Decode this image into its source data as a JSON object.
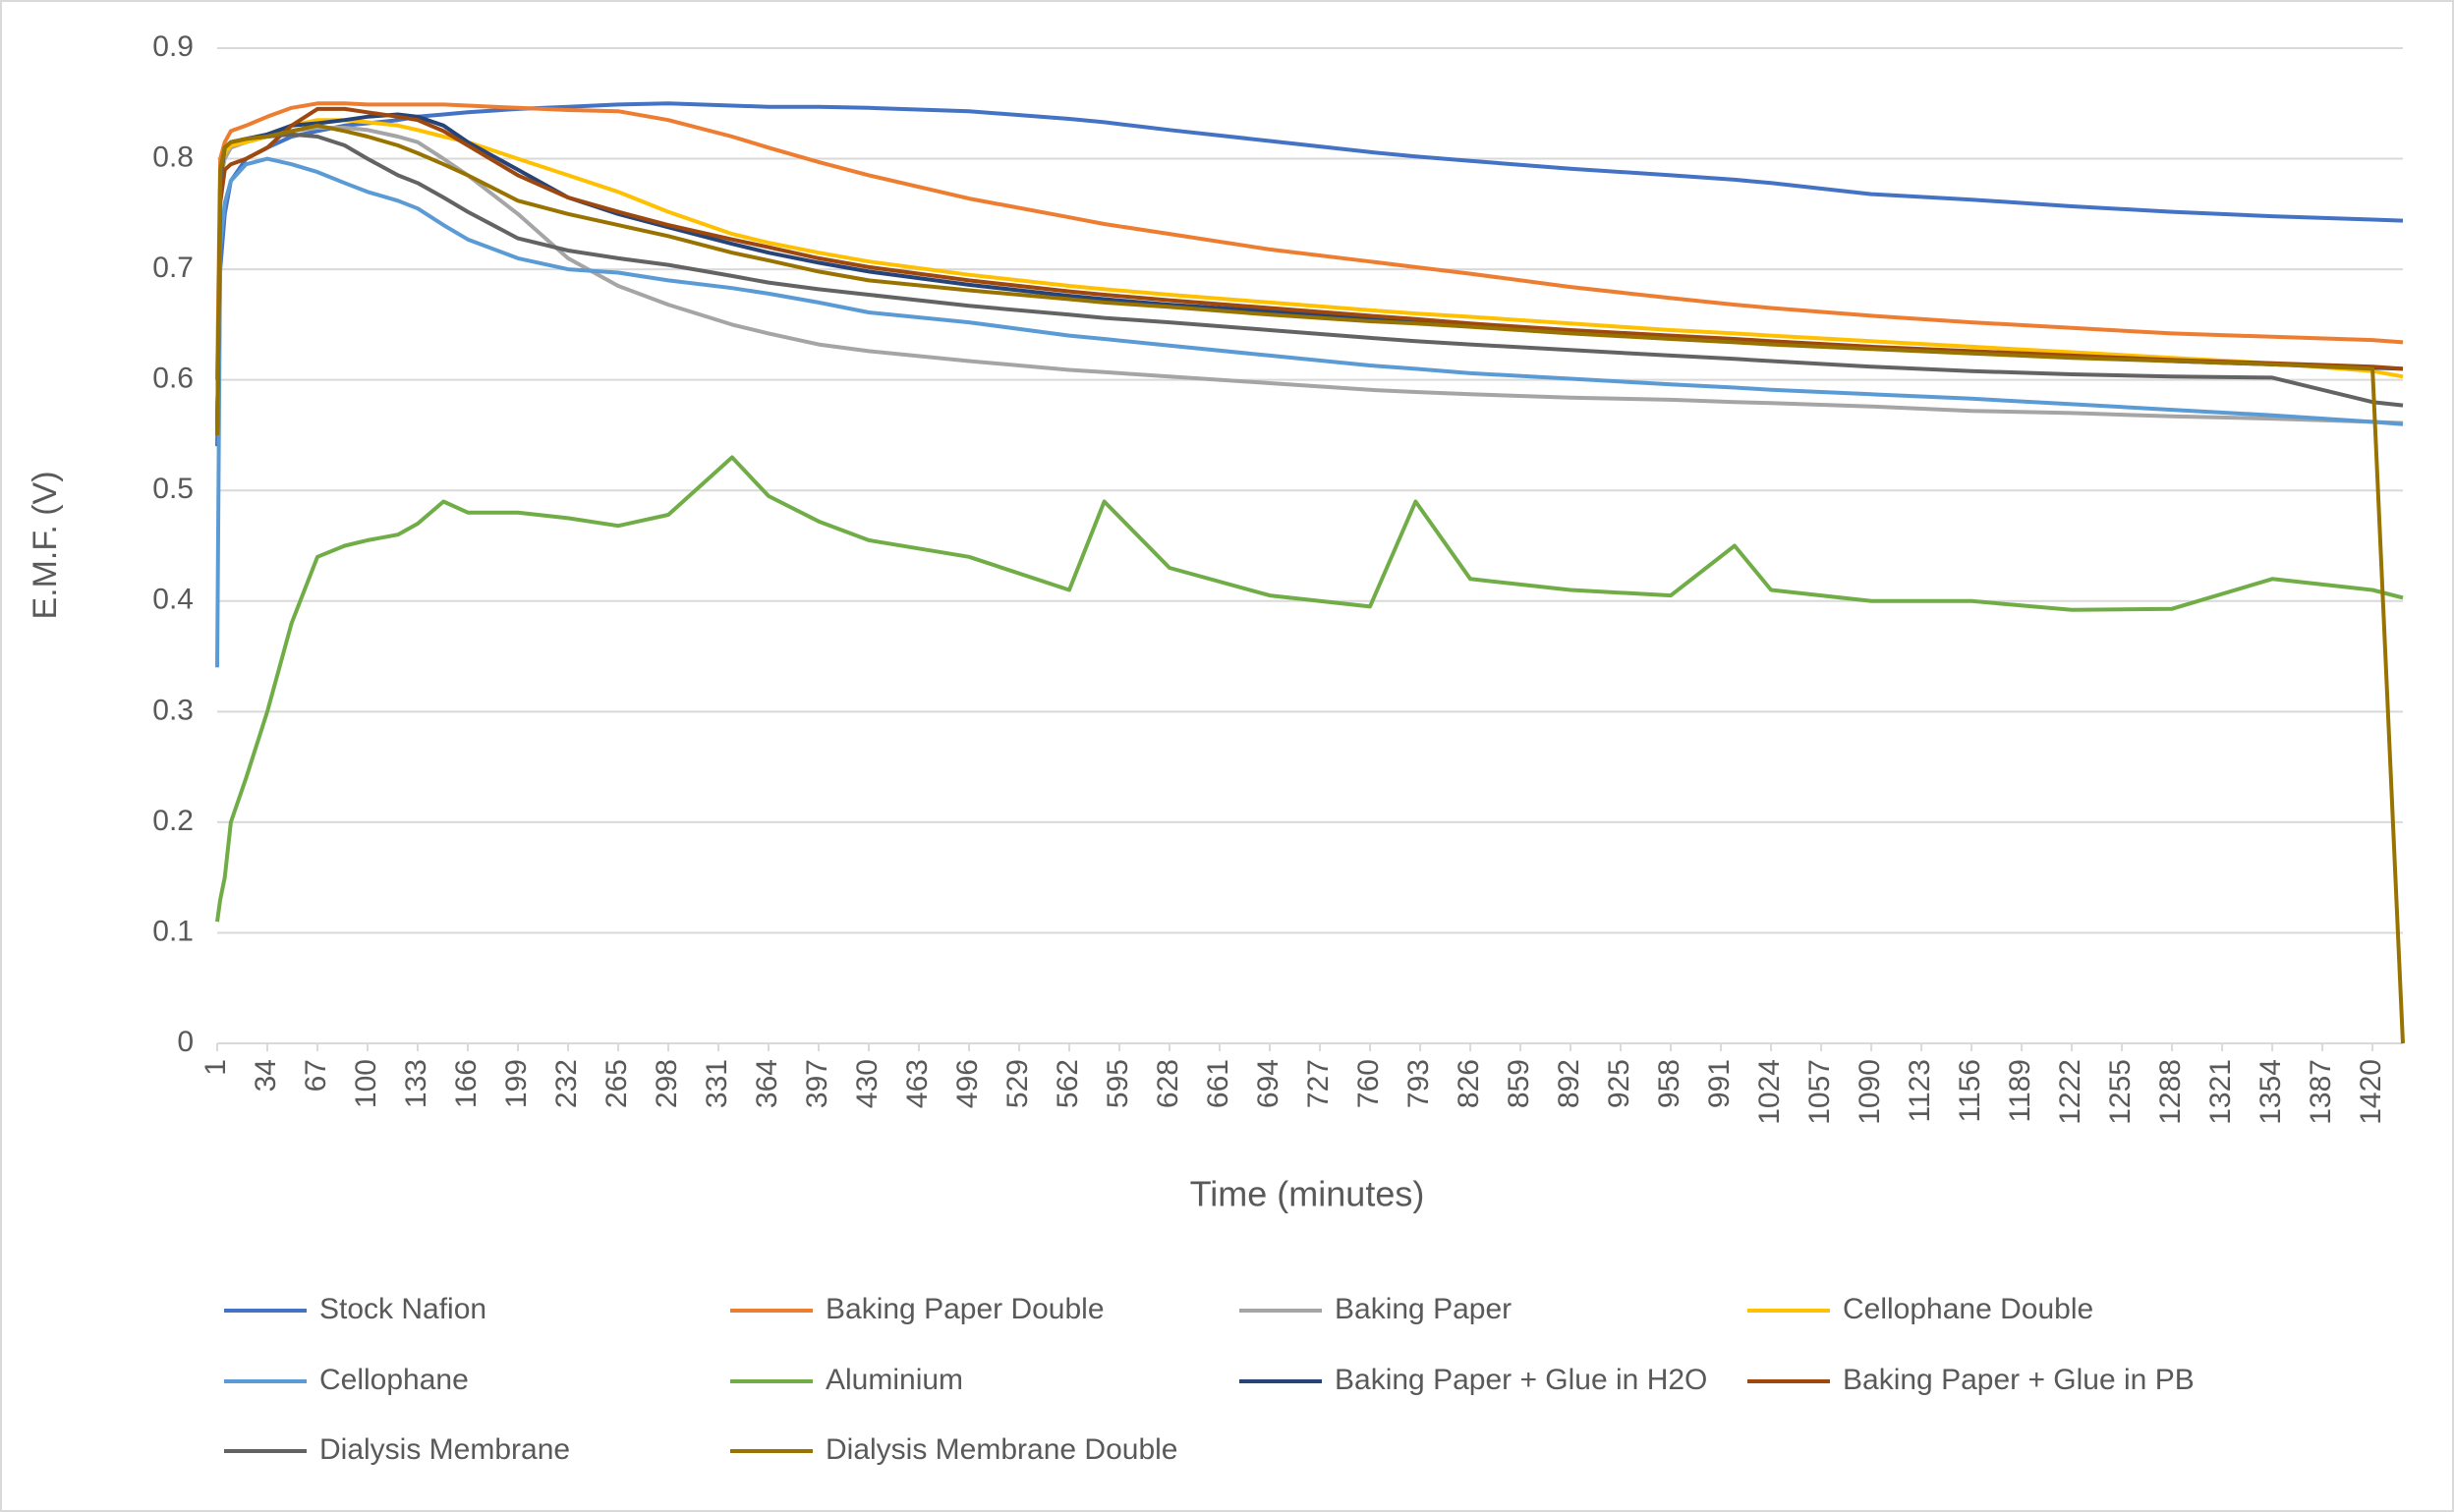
{
  "chart_data": {
    "type": "line",
    "x_label": "Time (minutes)",
    "y_label": "E.M.F. (V)",
    "x": [
      1,
      3,
      6,
      10,
      20,
      34,
      50,
      67,
      85,
      100,
      120,
      133,
      150,
      166,
      199,
      232,
      265,
      298,
      340,
      364,
      397,
      430,
      496,
      562,
      585,
      628,
      694,
      760,
      790,
      826,
      892,
      958,
      1000,
      1024,
      1090,
      1156,
      1222,
      1288,
      1354,
      1420,
      1440
    ],
    "xlim": [
      1,
      1440
    ],
    "xticks": [
      1,
      34,
      67,
      100,
      133,
      166,
      199,
      232,
      265,
      298,
      331,
      364,
      397,
      430,
      463,
      496,
      529,
      562,
      595,
      628,
      661,
      694,
      727,
      760,
      793,
      826,
      859,
      892,
      925,
      958,
      991,
      1024,
      1057,
      1090,
      1123,
      1156,
      1189,
      1222,
      1255,
      1288,
      1321,
      1354,
      1387,
      1420
    ],
    "ylim": [
      0,
      0.9
    ],
    "yticks": [
      0,
      0.1,
      0.2,
      0.3,
      0.4,
      0.5,
      0.6,
      0.7,
      0.8,
      0.9
    ],
    "grid": true,
    "legend": "bottom",
    "series": [
      {
        "name": "Stock Nafion",
        "color": "#4472c4",
        "values": [
          0.54,
          0.7,
          0.75,
          0.78,
          0.8,
          0.81,
          0.82,
          0.825,
          0.83,
          0.832,
          0.835,
          0.838,
          0.84,
          0.842,
          0.845,
          0.847,
          0.849,
          0.85,
          0.848,
          0.847,
          0.847,
          0.846,
          0.843,
          0.836,
          0.833,
          0.826,
          0.816,
          0.806,
          0.802,
          0.798,
          0.791,
          0.785,
          0.781,
          0.778,
          0.768,
          0.763,
          0.757,
          0.752,
          0.748,
          0.745,
          0.744
        ]
      },
      {
        "name": "Baking Paper Double",
        "color": "#ed7d31",
        "values": [
          0.6,
          0.8,
          0.815,
          0.825,
          0.83,
          0.838,
          0.846,
          0.85,
          0.85,
          0.849,
          0.849,
          0.849,
          0.849,
          0.848,
          0.846,
          0.844,
          0.843,
          0.835,
          0.82,
          0.81,
          0.797,
          0.785,
          0.764,
          0.747,
          0.741,
          0.732,
          0.718,
          0.707,
          0.702,
          0.696,
          0.684,
          0.674,
          0.668,
          0.665,
          0.658,
          0.652,
          0.647,
          0.642,
          0.639,
          0.636,
          0.634
        ]
      },
      {
        "name": "Baking Paper",
        "color": "#a5a5a5",
        "values": [
          0.55,
          0.78,
          0.8,
          0.81,
          0.815,
          0.82,
          0.825,
          0.828,
          0.828,
          0.826,
          0.82,
          0.815,
          0.8,
          0.785,
          0.75,
          0.71,
          0.685,
          0.668,
          0.65,
          0.642,
          0.632,
          0.626,
          0.617,
          0.609,
          0.607,
          0.603,
          0.597,
          0.591,
          0.589,
          0.587,
          0.584,
          0.582,
          0.58,
          0.579,
          0.576,
          0.572,
          0.57,
          0.567,
          0.565,
          0.562,
          0.561
        ]
      },
      {
        "name": "Cellophane Double",
        "color": "#ffc000",
        "values": [
          0.55,
          0.78,
          0.805,
          0.812,
          0.815,
          0.82,
          0.83,
          0.835,
          0.835,
          0.833,
          0.83,
          0.826,
          0.82,
          0.815,
          0.8,
          0.785,
          0.77,
          0.752,
          0.732,
          0.724,
          0.715,
          0.707,
          0.695,
          0.685,
          0.682,
          0.677,
          0.67,
          0.663,
          0.66,
          0.657,
          0.651,
          0.645,
          0.642,
          0.64,
          0.635,
          0.63,
          0.625,
          0.62,
          0.615,
          0.608,
          0.603
        ]
      },
      {
        "name": "Cellophane",
        "color": "#5b9bd5",
        "values": [
          0.34,
          0.72,
          0.76,
          0.78,
          0.795,
          0.8,
          0.795,
          0.788,
          0.778,
          0.77,
          0.762,
          0.755,
          0.74,
          0.727,
          0.71,
          0.7,
          0.697,
          0.69,
          0.683,
          0.678,
          0.67,
          0.661,
          0.652,
          0.64,
          0.637,
          0.631,
          0.622,
          0.613,
          0.61,
          0.606,
          0.601,
          0.596,
          0.593,
          0.591,
          0.587,
          0.583,
          0.578,
          0.573,
          0.568,
          0.562,
          0.56
        ]
      },
      {
        "name": "Aluminium",
        "color": "#70ad47",
        "values": [
          0.11,
          0.13,
          0.15,
          0.2,
          0.24,
          0.3,
          0.38,
          0.44,
          0.45,
          0.455,
          0.46,
          0.47,
          0.49,
          0.48,
          0.48,
          0.475,
          0.468,
          0.478,
          0.53,
          0.495,
          0.472,
          0.455,
          0.44,
          0.41,
          0.49,
          0.43,
          0.405,
          0.395,
          0.49,
          0.42,
          0.41,
          0.405,
          0.45,
          0.41,
          0.4,
          0.4,
          0.392,
          0.393,
          0.42,
          0.41,
          0.403
        ]
      },
      {
        "name": "Baking Paper + Glue in H2O",
        "color": "#264478",
        "values": [
          0.55,
          0.78,
          0.81,
          0.815,
          0.818,
          0.822,
          0.83,
          0.832,
          0.835,
          0.838,
          0.84,
          0.838,
          0.83,
          0.815,
          0.79,
          0.765,
          0.75,
          0.738,
          0.723,
          0.715,
          0.706,
          0.698,
          0.686,
          0.676,
          0.673,
          0.668,
          0.662,
          0.655,
          0.653,
          0.649,
          0.643,
          0.638,
          0.635,
          0.633,
          0.629,
          0.625,
          0.621,
          0.617,
          0.614,
          0.611,
          0.61
        ]
      },
      {
        "name": "Baking Paper + Glue in PB",
        "color": "#9e480e",
        "values": [
          0.55,
          0.76,
          0.79,
          0.795,
          0.8,
          0.81,
          0.83,
          0.845,
          0.845,
          0.842,
          0.838,
          0.835,
          0.825,
          0.812,
          0.785,
          0.765,
          0.752,
          0.74,
          0.727,
          0.72,
          0.71,
          0.702,
          0.69,
          0.68,
          0.677,
          0.672,
          0.665,
          0.658,
          0.655,
          0.651,
          0.645,
          0.64,
          0.637,
          0.635,
          0.63,
          0.626,
          0.622,
          0.618,
          0.615,
          0.612,
          0.61
        ]
      },
      {
        "name": "Dialysis Membrane",
        "color": "#636363",
        "values": [
          0.55,
          0.78,
          0.81,
          0.815,
          0.818,
          0.82,
          0.822,
          0.82,
          0.812,
          0.8,
          0.785,
          0.778,
          0.765,
          0.752,
          0.728,
          0.717,
          0.71,
          0.704,
          0.694,
          0.688,
          0.682,
          0.677,
          0.667,
          0.659,
          0.656,
          0.652,
          0.645,
          0.638,
          0.635,
          0.632,
          0.627,
          0.622,
          0.619,
          0.617,
          0.612,
          0.608,
          0.605,
          0.603,
          0.602,
          0.58,
          0.577
        ]
      },
      {
        "name": "Dialysis Membrane Double",
        "color": "#997300",
        "values": [
          0.55,
          0.79,
          0.81,
          0.815,
          0.818,
          0.82,
          0.825,
          0.83,
          0.825,
          0.82,
          0.812,
          0.805,
          0.795,
          0.785,
          0.762,
          0.75,
          0.74,
          0.73,
          0.715,
          0.708,
          0.698,
          0.69,
          0.681,
          0.673,
          0.67,
          0.666,
          0.659,
          0.653,
          0.651,
          0.648,
          0.642,
          0.637,
          0.634,
          0.632,
          0.628,
          0.624,
          0.62,
          0.617,
          0.614,
          0.61,
          0
        ]
      }
    ]
  }
}
